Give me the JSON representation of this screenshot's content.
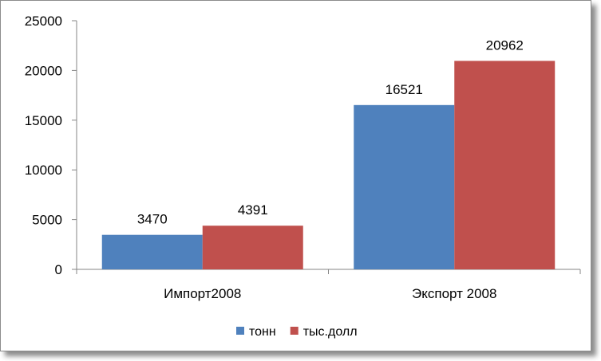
{
  "chart_data": {
    "type": "bar",
    "title": "",
    "xlabel": "",
    "ylabel": "",
    "categories": [
      "Импорт2008",
      "Экспорт 2008"
    ],
    "series": [
      {
        "name": "тонн",
        "values": [
          3470,
          16521
        ],
        "color": "#4f81bd"
      },
      {
        "name": "тыс.долл",
        "values": [
          4391,
          20962
        ],
        "color": "#c0504d"
      }
    ],
    "ylim": [
      0,
      25000
    ],
    "yticks": [
      0,
      5000,
      10000,
      15000,
      20000,
      25000
    ],
    "ytick_labels": [
      "0",
      "5000",
      "10000",
      "15000",
      "20000",
      "25000"
    ],
    "grid": false,
    "legend_position": "bottom",
    "data_labels": true
  }
}
